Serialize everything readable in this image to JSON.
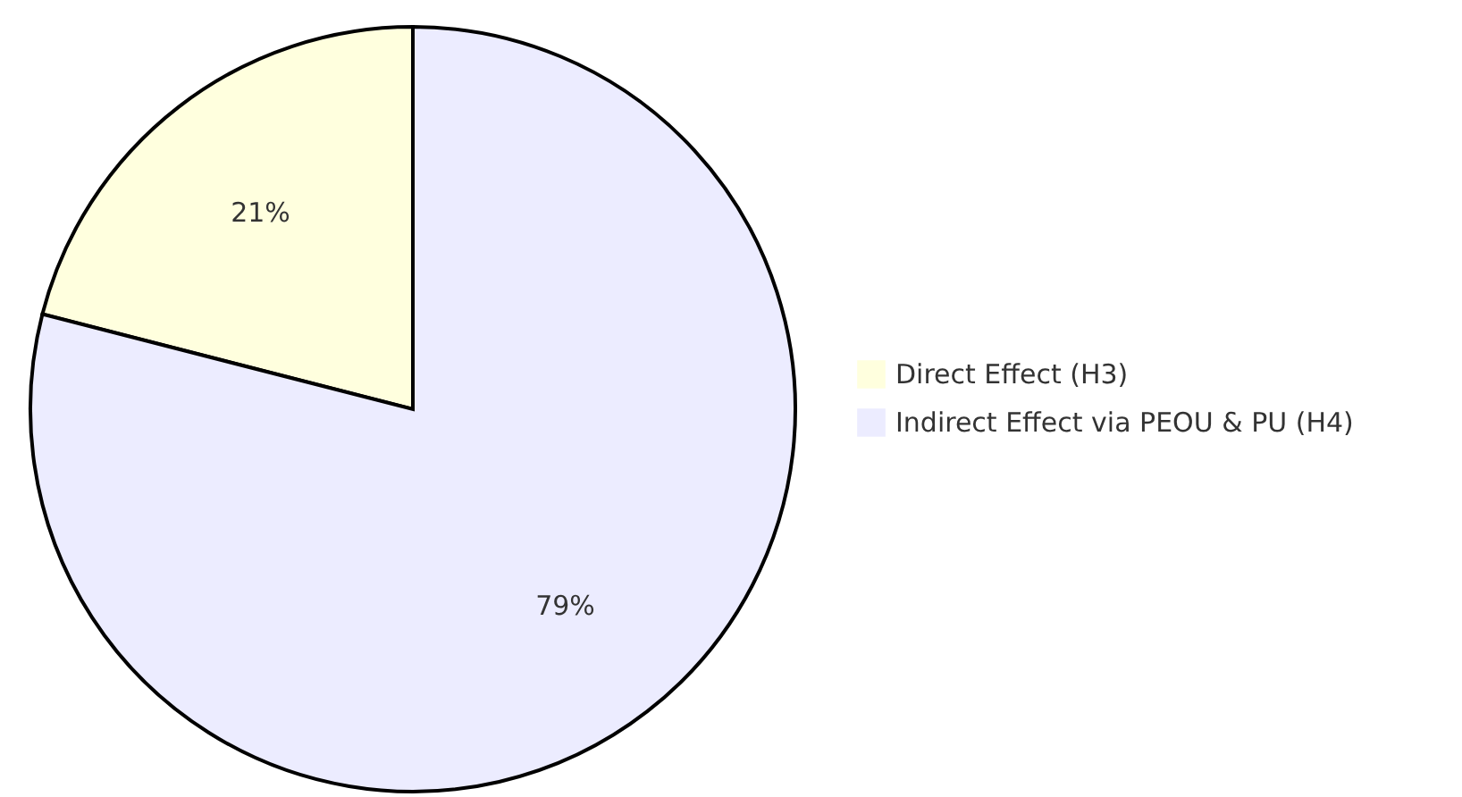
{
  "chart_data": {
    "type": "pie",
    "categories": [
      "Direct Effect (H3)",
      "Indirect Effect via PEOU & PU (H4)"
    ],
    "values": [
      21,
      79
    ],
    "colors": [
      "#ffffde",
      "#ececff"
    ],
    "value_labels": [
      "21%",
      "79%"
    ],
    "legend": "right"
  }
}
